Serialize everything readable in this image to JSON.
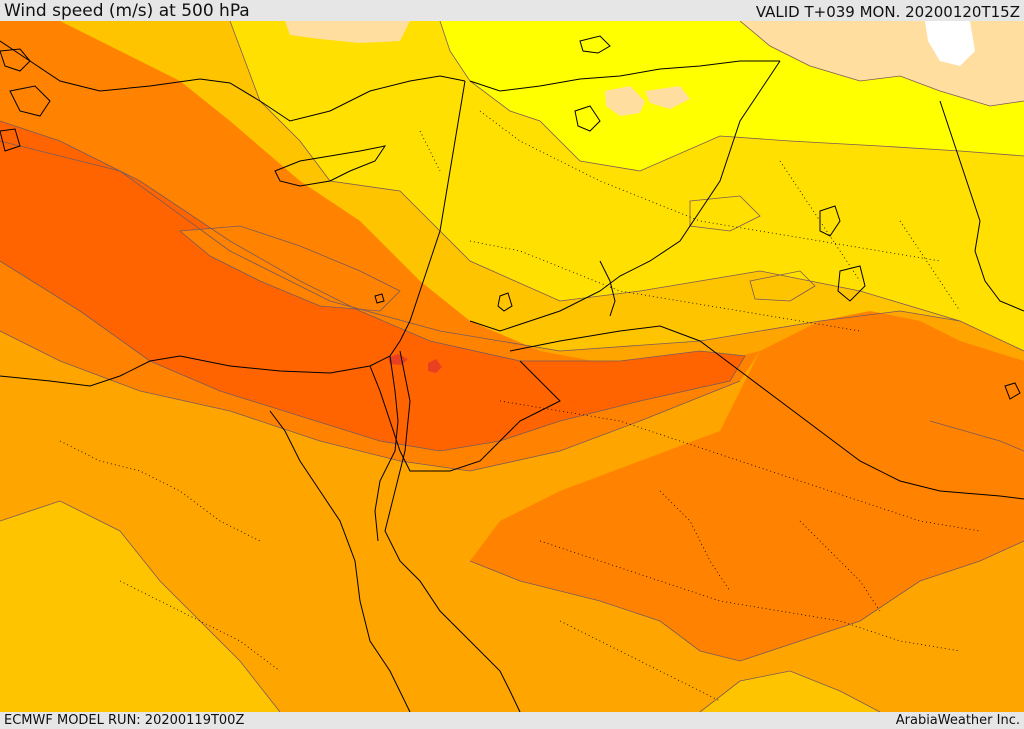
{
  "header": {
    "title": "Wind speed (m/s) at 500 hPa",
    "valid_time": "VALID T+039 MON. 20200120T15Z"
  },
  "footer": {
    "model_run": "ECMWF MODEL RUN: 20200119T00Z",
    "credit": "ArabiaWeather Inc."
  },
  "map": {
    "variable": "wind speed",
    "units": "m/s",
    "level_hpa": 500,
    "colors": {
      "band_1": "#ffffff",
      "band_2": "#ffdea0",
      "band_3": "#ffff00",
      "band_4": "#ffe000",
      "band_5": "#ffc400",
      "band_6": "#ffa500",
      "band_7": "#ff8200",
      "band_8": "#ff6400",
      "band_9": "#e84020",
      "contour_line": "#7a5a5a",
      "coastline": "#000000",
      "border_dotted": "#000000"
    }
  }
}
